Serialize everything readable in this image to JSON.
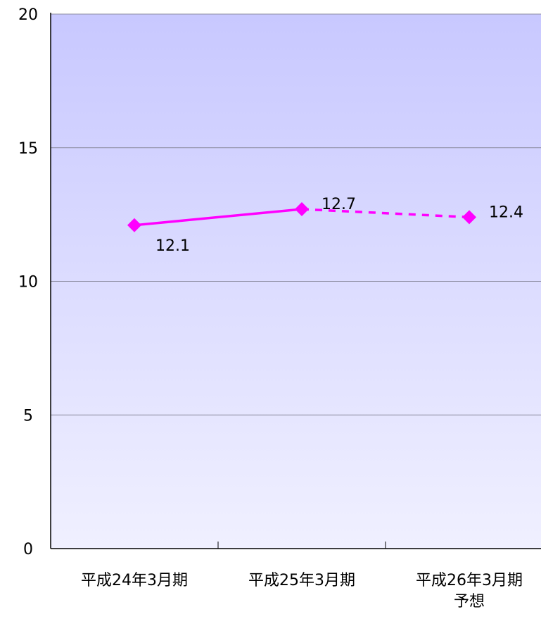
{
  "chart_data": {
    "type": "line",
    "categories": [
      "平成24年3月期",
      "平成25年3月期",
      "平成26年3月期\n予想"
    ],
    "series": [
      {
        "color": "#ff00ff",
        "values": [
          12.1,
          12.7,
          12.4
        ]
      }
    ],
    "dashed_segments": [
      1
    ],
    "ylim": [
      0,
      20
    ],
    "yticks": [
      0,
      5,
      10,
      15,
      20
    ],
    "grid": true
  }
}
